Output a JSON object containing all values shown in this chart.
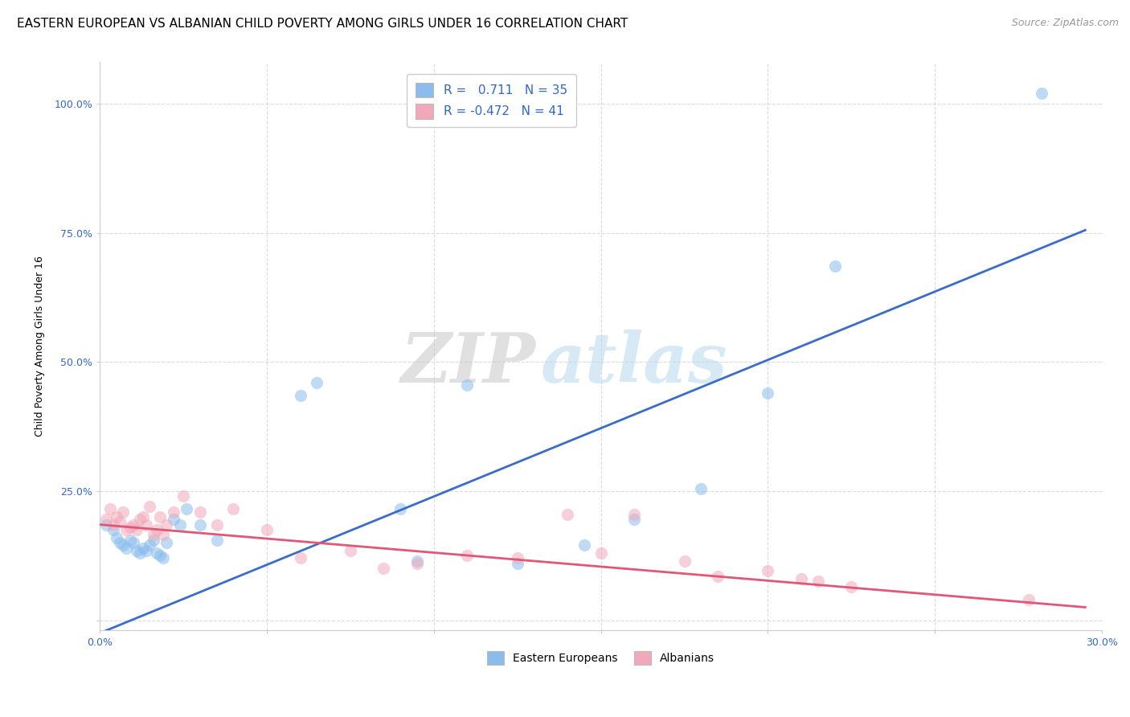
{
  "title": "EASTERN EUROPEAN VS ALBANIAN CHILD POVERTY AMONG GIRLS UNDER 16 CORRELATION CHART",
  "source": "Source: ZipAtlas.com",
  "ylabel": "Child Poverty Among Girls Under 16",
  "xlim": [
    0.0,
    0.3
  ],
  "ylim": [
    -0.02,
    1.08
  ],
  "xticks": [
    0.0,
    0.05,
    0.1,
    0.15,
    0.2,
    0.25,
    0.3
  ],
  "xticklabels": [
    "0.0%",
    "",
    "",
    "",
    "",
    "",
    "30.0%"
  ],
  "yticks": [
    0.0,
    0.25,
    0.5,
    0.75,
    1.0
  ],
  "yticklabels": [
    "",
    "25.0%",
    "50.0%",
    "75.0%",
    "100.0%"
  ],
  "blue_color": "#8BBCEC",
  "pink_color": "#F2A8B8",
  "blue_line_color": "#3B6CC8",
  "pink_line_color": "#E05878",
  "blue_R": 0.711,
  "blue_N": 35,
  "pink_R": -0.472,
  "pink_N": 41,
  "watermark_zip": "ZIP",
  "watermark_atlas": "atlas",
  "legend_label_blue": "Eastern Europeans",
  "legend_label_pink": "Albanians",
  "blue_scatter_x": [
    0.002,
    0.004,
    0.005,
    0.006,
    0.007,
    0.008,
    0.009,
    0.01,
    0.011,
    0.012,
    0.013,
    0.014,
    0.015,
    0.016,
    0.017,
    0.018,
    0.019,
    0.02,
    0.022,
    0.024,
    0.026,
    0.03,
    0.035,
    0.06,
    0.065,
    0.09,
    0.095,
    0.11,
    0.125,
    0.145,
    0.16,
    0.18,
    0.2,
    0.22,
    0.282
  ],
  "blue_scatter_y": [
    0.185,
    0.175,
    0.16,
    0.15,
    0.145,
    0.14,
    0.155,
    0.15,
    0.135,
    0.13,
    0.14,
    0.135,
    0.145,
    0.155,
    0.13,
    0.125,
    0.12,
    0.15,
    0.195,
    0.185,
    0.215,
    0.185,
    0.155,
    0.435,
    0.46,
    0.215,
    0.115,
    0.455,
    0.11,
    0.145,
    0.195,
    0.255,
    0.44,
    0.685,
    1.02
  ],
  "pink_scatter_x": [
    0.002,
    0.003,
    0.004,
    0.005,
    0.006,
    0.007,
    0.008,
    0.009,
    0.01,
    0.011,
    0.012,
    0.013,
    0.014,
    0.015,
    0.016,
    0.017,
    0.018,
    0.019,
    0.02,
    0.022,
    0.025,
    0.03,
    0.035,
    0.04,
    0.05,
    0.06,
    0.075,
    0.085,
    0.095,
    0.11,
    0.125,
    0.14,
    0.15,
    0.16,
    0.175,
    0.185,
    0.2,
    0.21,
    0.215,
    0.225,
    0.278
  ],
  "pink_scatter_y": [
    0.195,
    0.215,
    0.185,
    0.2,
    0.19,
    0.21,
    0.175,
    0.18,
    0.185,
    0.175,
    0.195,
    0.2,
    0.185,
    0.22,
    0.165,
    0.175,
    0.2,
    0.165,
    0.185,
    0.21,
    0.24,
    0.21,
    0.185,
    0.215,
    0.175,
    0.12,
    0.135,
    0.1,
    0.11,
    0.125,
    0.12,
    0.205,
    0.13,
    0.205,
    0.115,
    0.085,
    0.095,
    0.08,
    0.075,
    0.065,
    0.04
  ],
  "blue_line": [
    [
      0.0,
      -0.025
    ],
    [
      0.295,
      0.755
    ]
  ],
  "pink_line": [
    [
      0.0,
      0.185
    ],
    [
      0.295,
      0.025
    ]
  ],
  "title_fontsize": 11,
  "axis_label_fontsize": 9,
  "tick_fontsize": 9,
  "source_fontsize": 9,
  "marker_size": 120
}
